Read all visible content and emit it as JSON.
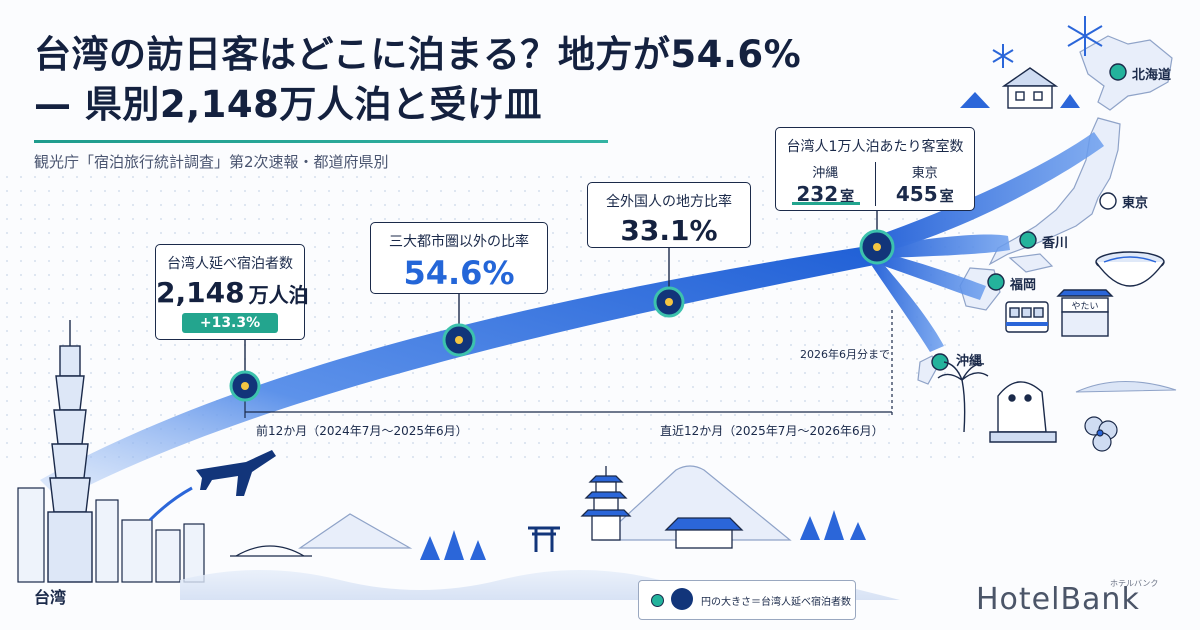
{
  "header": {
    "title_line1": "台湾の訪日客はどこに泊まる？地方が54.6%",
    "title_line2": "— 県別2,148万人泊と受け皿",
    "subtitle": "観光庁「宿泊旅行統計調査」第2次速報・都道府県別"
  },
  "callouts": {
    "total": {
      "label": "台湾人延べ宿泊者数",
      "value": "2,148",
      "unit": "万人泊",
      "change": "+13.3%"
    },
    "regional_ratio": {
      "label": "三大都市圏以外の比率",
      "value": "54.6%"
    },
    "all_foreign_ratio": {
      "label": "全外国人の地方比率",
      "value": "33.1%"
    },
    "rooms": {
      "label": "台湾人1万人泊あたり客室数",
      "okinawa_city": "沖縄",
      "okinawa_value": "232",
      "okinawa_unit": "室",
      "tokyo_city": "東京",
      "tokyo_value": "455",
      "tokyo_unit": "室"
    }
  },
  "timeline": {
    "prev_period": "前12か月（2024年7月〜2025年6月）",
    "current_period": "直近12か月（2025年7月〜2026年6月）",
    "until_note": "2026年6月分まで"
  },
  "prefectures": {
    "hokkaido": "北海道",
    "tokyo": "東京",
    "kagawa": "香川",
    "fukuoka": "福岡",
    "okinawa": "沖縄"
  },
  "origin": "台湾",
  "legend_text": "円の大きさ＝台湾人延べ宿泊者数",
  "brand": {
    "name": "HotelBank",
    "kana": "ホテルバンク"
  },
  "signboard": "やたい",
  "colors": {
    "flow_blue": "#2d6de0",
    "teal": "#23a58e",
    "navy": "#14213f",
    "accent_blue": "#2466d8"
  }
}
